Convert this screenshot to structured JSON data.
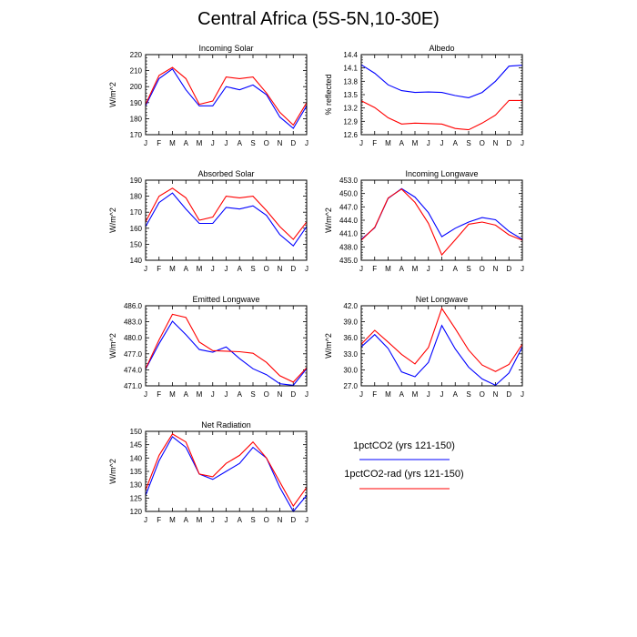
{
  "title": "Central Africa (5S-5N,10-30E)",
  "months": [
    "J",
    "F",
    "M",
    "A",
    "M",
    "J",
    "J",
    "A",
    "S",
    "O",
    "N",
    "D",
    "J"
  ],
  "series": [
    {
      "name": "1pctCO2 (yrs 121-150)",
      "color": "#0000ff"
    },
    {
      "name": "1pctCO2-rad (yrs 121-150)",
      "color": "#ff0000"
    }
  ],
  "chart_data": [
    {
      "type": "line",
      "title": "Incoming Solar",
      "ylabel": "W/m^2",
      "ylim": [
        170,
        220
      ],
      "yticks": [
        "170",
        "180",
        "190",
        "200",
        "210",
        "220"
      ],
      "series": [
        {
          "name": "1pctCO2 (yrs 121-150)",
          "values": [
            188,
            205,
            211,
            198,
            188,
            188,
            200,
            198,
            201,
            195,
            181,
            174,
            188
          ]
        },
        {
          "name": "1pctCO2-rad (yrs 121-150)",
          "values": [
            189,
            207,
            212,
            205,
            189,
            191,
            206,
            205,
            206,
            196,
            184,
            176,
            190
          ]
        }
      ]
    },
    {
      "type": "line",
      "title": "Albedo",
      "ylabel": "% reflected",
      "ylim": [
        12.6,
        14.4
      ],
      "yticks": [
        "12.6",
        "12.9",
        "13.2",
        "13.5",
        "13.8",
        "14.1",
        "14.4"
      ],
      "series": [
        {
          "name": "1pctCO2 (yrs 121-150)",
          "values": [
            14.17,
            13.98,
            13.72,
            13.59,
            13.55,
            13.56,
            13.55,
            13.48,
            13.43,
            13.55,
            13.8,
            14.14,
            14.16
          ]
        },
        {
          "name": "1pctCO2-rad (yrs 121-150)",
          "values": [
            13.36,
            13.21,
            12.98,
            12.84,
            12.86,
            12.85,
            12.84,
            12.74,
            12.71,
            12.86,
            13.04,
            13.37,
            13.37
          ]
        }
      ]
    },
    {
      "type": "line",
      "title": "Absorbed Solar",
      "ylabel": "W/m^2",
      "ylim": [
        140,
        190
      ],
      "yticks": [
        "140",
        "150",
        "160",
        "170",
        "180",
        "190"
      ],
      "series": [
        {
          "name": "1pctCO2 (yrs 121-150)",
          "values": [
            161,
            176,
            182,
            172,
            163,
            163,
            173,
            172,
            174,
            168,
            156,
            149,
            161
          ]
        },
        {
          "name": "1pctCO2-rad (yrs 121-150)",
          "values": [
            164,
            180,
            185,
            179,
            165,
            167,
            180,
            179,
            180,
            171,
            161,
            153,
            164
          ]
        }
      ]
    },
    {
      "type": "line",
      "title": "Incoming Longwave",
      "ylabel": "W/m^2",
      "ylim": [
        435,
        453
      ],
      "yticks": [
        "435.0",
        "438.0",
        "441.0",
        "444.0",
        "447.0",
        "450.0",
        "453.0"
      ],
      "series": [
        {
          "name": "1pctCO2 (yrs 121-150)",
          "values": [
            439.7,
            442.3,
            448.9,
            451.1,
            449.2,
            445.7,
            440.3,
            442.2,
            443.6,
            444.6,
            444.1,
            441.5,
            439.7
          ]
        },
        {
          "name": "1pctCO2-rad (yrs 121-150)",
          "values": [
            439.5,
            442.4,
            449.0,
            451.0,
            448.0,
            443.3,
            436.2,
            439.6,
            443.1,
            443.6,
            442.9,
            440.7,
            439.5
          ]
        }
      ]
    },
    {
      "type": "line",
      "title": "Emitted Longwave",
      "ylabel": "W/m^2",
      "ylim": [
        471,
        486
      ],
      "yticks": [
        "471.0",
        "474.0",
        "477.0",
        "480.0",
        "483.0",
        "486.0"
      ],
      "series": [
        {
          "name": "1pctCO2 (yrs 121-150)",
          "values": [
            474.1,
            478.9,
            483.1,
            480.6,
            477.8,
            477.3,
            478.3,
            476.1,
            474.2,
            473.1,
            471.4,
            471.1,
            474.2
          ]
        },
        {
          "name": "1pctCO2-rad (yrs 121-150)",
          "values": [
            474.2,
            479.6,
            484.4,
            483.8,
            479.2,
            477.6,
            477.5,
            477.4,
            477.1,
            475.4,
            472.9,
            471.7,
            474.4
          ]
        }
      ]
    },
    {
      "type": "line",
      "title": "Net Longwave",
      "ylabel": "W/m^2",
      "ylim": [
        27,
        42
      ],
      "yticks": [
        "27.0",
        "30.0",
        "33.0",
        "36.0",
        "39.0",
        "42.0"
      ],
      "series": [
        {
          "name": "1pctCO2 (yrs 121-150)",
          "values": [
            34.3,
            36.6,
            34.0,
            29.6,
            28.7,
            31.4,
            38.3,
            33.9,
            30.5,
            28.3,
            27.1,
            29.4,
            34.3
          ]
        },
        {
          "name": "1pctCO2-rad (yrs 121-150)",
          "values": [
            34.8,
            37.4,
            35.2,
            32.9,
            31.1,
            34.2,
            41.5,
            37.7,
            33.7,
            30.9,
            29.7,
            31.0,
            34.8
          ]
        }
      ]
    },
    {
      "type": "line",
      "title": "Net Radiation",
      "ylabel": "W/m^2",
      "ylim": [
        120,
        150
      ],
      "yticks": [
        "120",
        "125",
        "130",
        "135",
        "140",
        "145",
        "150"
      ],
      "series": [
        {
          "name": "1pctCO2 (yrs 121-150)",
          "values": [
            126,
            139,
            148,
            144,
            134,
            132,
            135,
            138,
            144,
            140,
            129,
            120,
            126
          ]
        },
        {
          "name": "1pctCO2-rad (yrs 121-150)",
          "values": [
            128,
            141,
            149,
            146,
            134,
            133,
            138,
            141,
            146,
            140,
            131,
            122,
            129
          ]
        }
      ]
    }
  ]
}
